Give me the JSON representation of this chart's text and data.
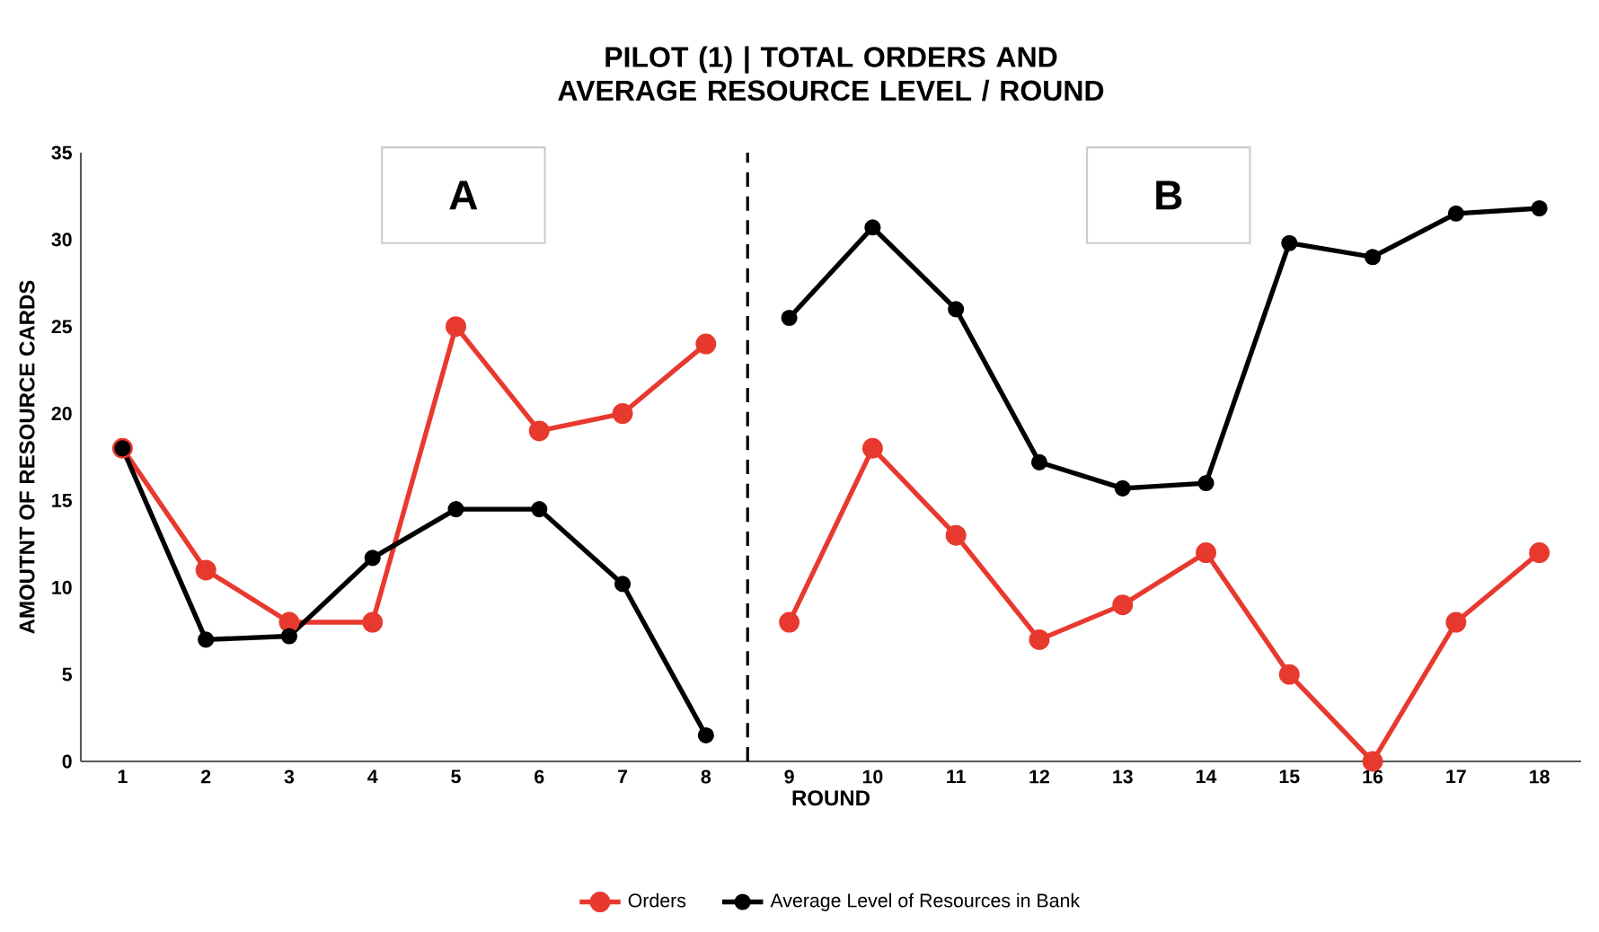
{
  "chart_data": {
    "type": "line",
    "title": "PILOT (1) | TOTAL ORDERS AND AVERAGE RESOURCE LEVEL / ROUND",
    "xlabel": "ROUND",
    "ylabel": "AMOUTNT OF RESOURCE CARDS",
    "x": [
      1,
      2,
      3,
      4,
      5,
      6,
      7,
      8,
      9,
      10,
      11,
      12,
      13,
      14,
      15,
      16,
      17,
      18
    ],
    "series": [
      {
        "name": "Orders",
        "color": "#e8392f",
        "values": [
          18,
          11,
          8,
          8,
          25,
          19,
          20,
          24,
          8,
          18,
          13,
          7,
          9,
          12,
          5,
          0,
          8,
          12
        ]
      },
      {
        "name": "Average Level of Resources in Bank",
        "color": "#000000",
        "values": [
          18,
          7,
          7.2,
          11.7,
          14.5,
          14.5,
          10.2,
          1.5,
          25.5,
          30.7,
          26,
          17.2,
          15.7,
          16,
          29.8,
          29,
          31.5,
          31.8
        ]
      }
    ],
    "xlim": [
      0.5,
      18.5
    ],
    "xticks": [
      1,
      2,
      3,
      4,
      5,
      6,
      7,
      8,
      9,
      10,
      11,
      12,
      13,
      14,
      15,
      16,
      17,
      18
    ],
    "ylim": [
      0,
      35
    ],
    "yticks": [
      0,
      5,
      10,
      15,
      20,
      25,
      30,
      35
    ],
    "ref_lines": [
      {
        "axis": "x",
        "value": 8.5,
        "color": "#000000",
        "line_style": "dashed"
      }
    ],
    "annotations": [
      "A",
      "B"
    ],
    "grid": false,
    "legend": "bottom",
    "marker": "circle",
    "line_style": "solid"
  }
}
